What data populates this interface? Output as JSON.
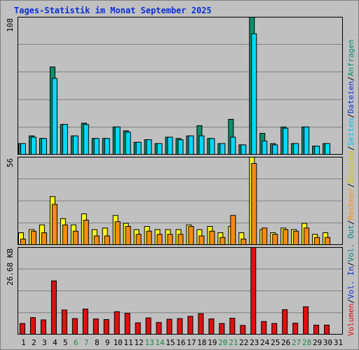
{
  "title": "Tages-Statistik im Monat September 2025",
  "colors": {
    "background": "#c0c0c0",
    "title": "#0b2fd6",
    "anfragen": "#0a8f6b",
    "dateien": "#00d8ff",
    "seiten": "#00c0ff",
    "besuche": "#f8f820",
    "rechner": "#ff8a10",
    "volumen": "#e01010",
    "weekend_day": "#1a8a4a",
    "weekday": "#000000"
  },
  "y_axis_labels": {
    "top": "108",
    "middle": "56",
    "bottom": "26.68 KB"
  },
  "right_legend": [
    {
      "text": "Anfragen",
      "color": "#0a8f6b"
    },
    {
      "text": "/",
      "color": "#000000"
    },
    {
      "text": "Dateien",
      "color": "#0b2fd6"
    },
    {
      "text": "/",
      "color": "#000000"
    },
    {
      "text": "Seiten",
      "color": "#00c0ff"
    },
    {
      "text": "/",
      "color": "#000000"
    },
    {
      "text": "Besuche",
      "color": "#d8c800"
    },
    {
      "text": "/",
      "color": "#000000"
    },
    {
      "text": "Rechner",
      "color": "#ff8a10"
    },
    {
      "text": "/",
      "color": "#000000"
    },
    {
      "text": "Vol. Out",
      "color": "#008080"
    },
    {
      "text": "/",
      "color": "#000000"
    },
    {
      "text": "Vol. In",
      "color": "#0b2fd6"
    },
    {
      "text": "/",
      "color": "#000000"
    },
    {
      "text": "Volumen",
      "color": "#e01010"
    }
  ],
  "chart_data": {
    "type": "bar",
    "categories": [
      "1",
      "2",
      "3",
      "4",
      "5",
      "6",
      "7",
      "8",
      "9",
      "10",
      "11",
      "12",
      "13",
      "14",
      "15",
      "16",
      "17",
      "18",
      "19",
      "20",
      "21",
      "22",
      "23",
      "24",
      "25",
      "26",
      "27",
      "28",
      "29",
      "30",
      "31"
    ],
    "weekend_days": [
      "6",
      "7",
      "13",
      "14",
      "20",
      "21",
      "27",
      "28"
    ],
    "panels": [
      {
        "name": "requests",
        "ymax": 108,
        "series": [
          {
            "name": "Anfragen",
            "values": [
              9,
              15,
              13,
              69,
              24,
              15,
              25,
              13,
              13,
              22,
              19,
              10,
              12,
              9,
              14,
              13,
              15,
              23,
              13,
              9,
              28,
              8,
              108,
              17,
              9,
              22,
              9,
              22,
              7,
              9,
              null
            ]
          },
          {
            "name": "Dateien",
            "values": [
              9,
              14,
              13,
              60,
              24,
              15,
              24,
              13,
              13,
              22,
              18,
              10,
              12,
              9,
              14,
              12,
              15,
              15,
              13,
              9,
              14,
              8,
              95,
              11,
              8,
              21,
              9,
              22,
              7,
              9,
              null
            ]
          }
        ]
      },
      {
        "name": "visits",
        "ymax": 56,
        "series": [
          {
            "name": "Besuche",
            "values": [
              8,
              10,
              13,
              31,
              17,
              13,
              20,
              10,
              11,
              19,
              14,
              10,
              12,
              10,
              10,
              10,
              13,
              10,
              12,
              8,
              12,
              8,
              56,
              10,
              8,
              11,
              10,
              14,
              7,
              8,
              null
            ]
          },
          {
            "name": "Rechner",
            "values": [
              4,
              9,
              8,
              26,
              13,
              9,
              16,
              6,
              6,
              15,
              12,
              7,
              9,
              7,
              7,
              7,
              12,
              6,
              9,
              5,
              19,
              4,
              52,
              11,
              7,
              10,
              9,
              11,
              5,
              5,
              null
            ]
          }
        ]
      },
      {
        "name": "volume",
        "ymax": 26.68,
        "series": [
          {
            "name": "Volumen",
            "values": [
              3.5,
              5.3,
              4.6,
              16.5,
              7.6,
              5.0,
              7.9,
              4.9,
              4.7,
              7.1,
              6.6,
              3.7,
              5.2,
              3.8,
              4.8,
              5.0,
              5.7,
              6.5,
              4.9,
              3.5,
              5.1,
              2.9,
              26.68,
              4.1,
              3.5,
              7.7,
              3.6,
              8.6,
              3.0,
              3.0,
              null
            ]
          }
        ]
      }
    ]
  }
}
